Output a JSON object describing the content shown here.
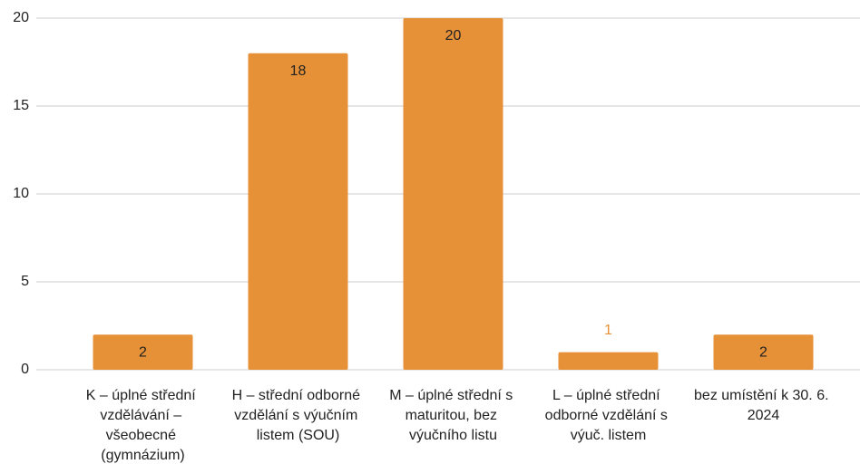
{
  "chart_data": {
    "type": "bar",
    "categories": [
      "K – úplné střední vzdělávání – všeobecné (gymnázium)",
      "H – střední odborné vzdělání s výučním listem (SOU)",
      "M – úplné střední s maturitou, bez výučního listu",
      "L – úplné střední odborné vzdělání s výuč. listem",
      "bez umístění k 30. 6. 2024"
    ],
    "values": [
      2,
      18,
      20,
      1,
      2
    ],
    "color": "#e69138",
    "ylim": [
      0,
      20
    ],
    "yticks": [
      0,
      5,
      10,
      15,
      20
    ],
    "grid": true
  }
}
